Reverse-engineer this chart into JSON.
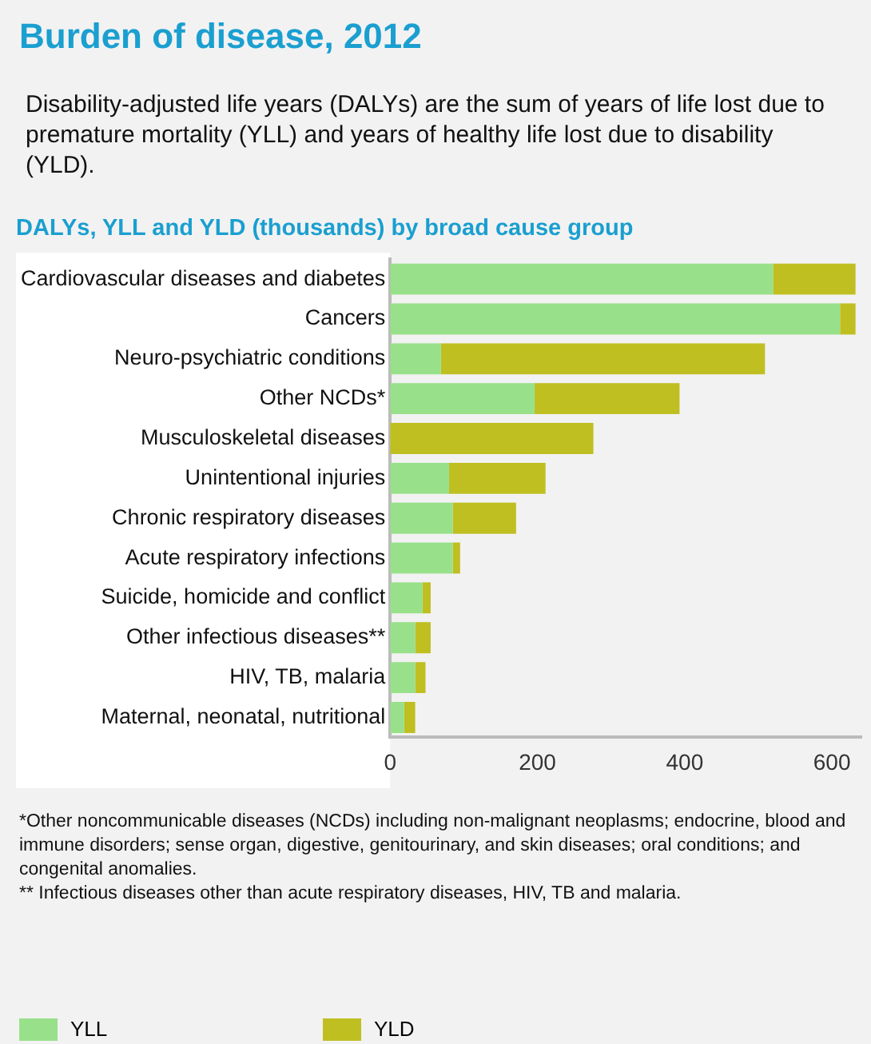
{
  "chart_data": {
    "type": "bar",
    "orientation": "horizontal",
    "stacked": true,
    "title": "Burden of disease, 2012",
    "subtitle": "DALYs, YLL and YLD (thousands) by broad cause group",
    "annotations": [
      "Disability-adjusted life years (DALYs) are the sum of years of life lost due to premature mortality (YLL) and years of healthy life lost due to disability (YLD).",
      "*Other noncommunicable diseases (NCDs) including non-malignant neoplasms; endocrine, blood and immune disorders; sense organ, digestive, genitourinary, and skin diseases; oral conditions; and congenital anomalies.",
      "** Infectious diseases other than acute respiratory diseases, HIV, TB and malaria."
    ],
    "categories": [
      "Cardiovascular diseases and diabetes",
      "Cancers",
      "Neuro-psychiatric conditions",
      "Other NCDs*",
      "Musculoskeletal diseases",
      "Unintentional injuries",
      "Chronic respiratory diseases",
      "Acute respiratory infections",
      "Suicide, homicide and conflict",
      "Other infectious diseases**",
      "HIV, TB, malaria",
      "Maternal, neonatal, nutritional"
    ],
    "series": [
      {
        "name": "YLL",
        "color": "#98e08a",
        "values": [
          520,
          611,
          69,
          196,
          0,
          80,
          85,
          85,
          44,
          34,
          34,
          19
        ]
      },
      {
        "name": "YLD",
        "color": "#bfbf22",
        "values": [
          112,
          21,
          440,
          197,
          276,
          131,
          86,
          10,
          11,
          21,
          14,
          15
        ]
      }
    ],
    "xlim": [
      0,
      640
    ],
    "xticks": [
      0,
      200,
      400,
      600
    ],
    "grid": false,
    "legend": "bottom"
  }
}
